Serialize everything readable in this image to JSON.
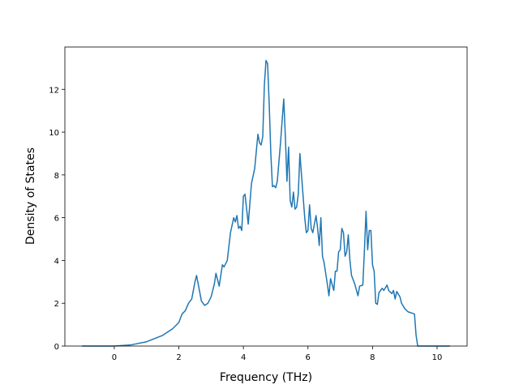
{
  "chart_data": {
    "type": "line",
    "x_label": "Frequency (THz)",
    "y_label": "Density of States",
    "color": "#1f77b4",
    "x": [
      -1.0,
      -0.5,
      0.0,
      0.5,
      1.0,
      1.5,
      1.8,
      2.0,
      2.1,
      2.2,
      2.3,
      2.4,
      2.5,
      2.55,
      2.6,
      2.7,
      2.8,
      2.9,
      3.0,
      3.1,
      3.15,
      3.25,
      3.35,
      3.4,
      3.5,
      3.6,
      3.7,
      3.75,
      3.8,
      3.85,
      3.9,
      3.95,
      4.0,
      4.05,
      4.15,
      4.25,
      4.35,
      4.45,
      4.5,
      4.55,
      4.6,
      4.65,
      4.7,
      4.75,
      4.8,
      4.85,
      4.9,
      4.95,
      5.0,
      5.05,
      5.15,
      5.25,
      5.3,
      5.35,
      5.4,
      5.45,
      5.5,
      5.55,
      5.6,
      5.65,
      5.7,
      5.75,
      5.8,
      5.85,
      5.9,
      5.95,
      6.0,
      6.05,
      6.1,
      6.15,
      6.25,
      6.3,
      6.35,
      6.4,
      6.45,
      6.5,
      6.6,
      6.65,
      6.7,
      6.8,
      6.85,
      6.9,
      6.95,
      7.0,
      7.05,
      7.1,
      7.15,
      7.2,
      7.25,
      7.3,
      7.35,
      7.45,
      7.55,
      7.6,
      7.7,
      7.75,
      7.8,
      7.85,
      7.9,
      7.95,
      8.0,
      8.05,
      8.1,
      8.15,
      8.2,
      8.3,
      8.35,
      8.45,
      8.5,
      8.6,
      8.65,
      8.7,
      8.75,
      8.85,
      8.9,
      9.0,
      9.1,
      9.2,
      9.3,
      9.35,
      9.4,
      10.4
    ],
    "values": [
      0,
      0,
      0,
      0.05,
      0.2,
      0.5,
      0.8,
      1.1,
      1.5,
      1.65,
      2.0,
      2.2,
      3.0,
      3.3,
      2.9,
      2.1,
      1.9,
      2.0,
      2.3,
      2.9,
      3.4,
      2.8,
      3.8,
      3.7,
      4.0,
      5.3,
      6.0,
      5.8,
      6.1,
      5.5,
      5.6,
      5.4,
      7.0,
      7.1,
      5.7,
      7.6,
      8.3,
      9.9,
      9.5,
      9.4,
      9.8,
      12.2,
      13.35,
      13.2,
      11.3,
      9.0,
      7.45,
      7.5,
      7.4,
      7.7,
      9.5,
      11.55,
      9.8,
      7.7,
      9.3,
      6.8,
      6.5,
      7.2,
      6.4,
      6.5,
      7.1,
      9.0,
      8.0,
      7.0,
      6.0,
      5.3,
      5.4,
      6.6,
      5.5,
      5.3,
      6.1,
      5.5,
      4.7,
      6.0,
      4.2,
      3.9,
      2.9,
      2.35,
      3.15,
      2.6,
      3.5,
      3.5,
      4.4,
      4.5,
      5.5,
      5.3,
      4.2,
      4.4,
      5.2,
      4.0,
      3.3,
      2.9,
      2.35,
      2.8,
      2.85,
      4.5,
      6.3,
      4.5,
      5.4,
      5.4,
      3.8,
      3.5,
      2.0,
      1.95,
      2.5,
      2.7,
      2.6,
      2.85,
      2.6,
      2.45,
      2.6,
      2.2,
      2.55,
      2.3,
      2.0,
      1.75,
      1.6,
      1.55,
      1.5,
      0.5,
      0,
      0
    ],
    "xlim": [
      -1.53,
      10.93
    ],
    "ylim": [
      0,
      13.98
    ],
    "xticks": [
      0,
      2,
      4,
      6,
      8,
      10
    ],
    "yticks": [
      0,
      2,
      4,
      6,
      8,
      10,
      12
    ]
  }
}
